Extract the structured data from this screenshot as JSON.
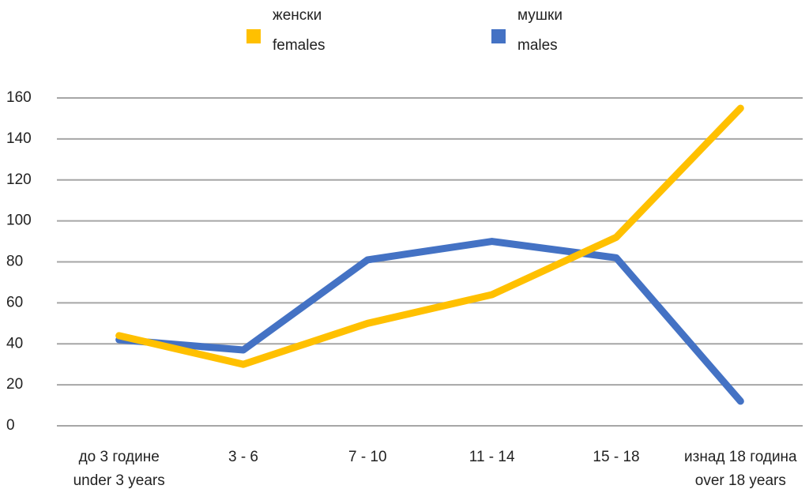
{
  "chart_data": {
    "type": "line",
    "categories": [
      [
        "до 3 године",
        "under 3 years"
      ],
      [
        "3 - 6"
      ],
      [
        "7 - 10"
      ],
      [
        "11 - 14"
      ],
      [
        "15 - 18"
      ],
      [
        "изнад 18 година",
        "over 18 years"
      ]
    ],
    "series": [
      {
        "name": [
          "женски",
          "females"
        ],
        "color": "#ffc000",
        "values": [
          44,
          30,
          50,
          64,
          92,
          155
        ]
      },
      {
        "name": [
          "мушки",
          "males"
        ],
        "color": "#4472c4",
        "values": [
          42,
          37,
          81,
          90,
          82,
          12
        ]
      }
    ],
    "ylim": [
      0,
      160
    ],
    "yticks": [
      0,
      20,
      40,
      60,
      80,
      100,
      120,
      140,
      160
    ],
    "grid": true,
    "legend": "top"
  }
}
